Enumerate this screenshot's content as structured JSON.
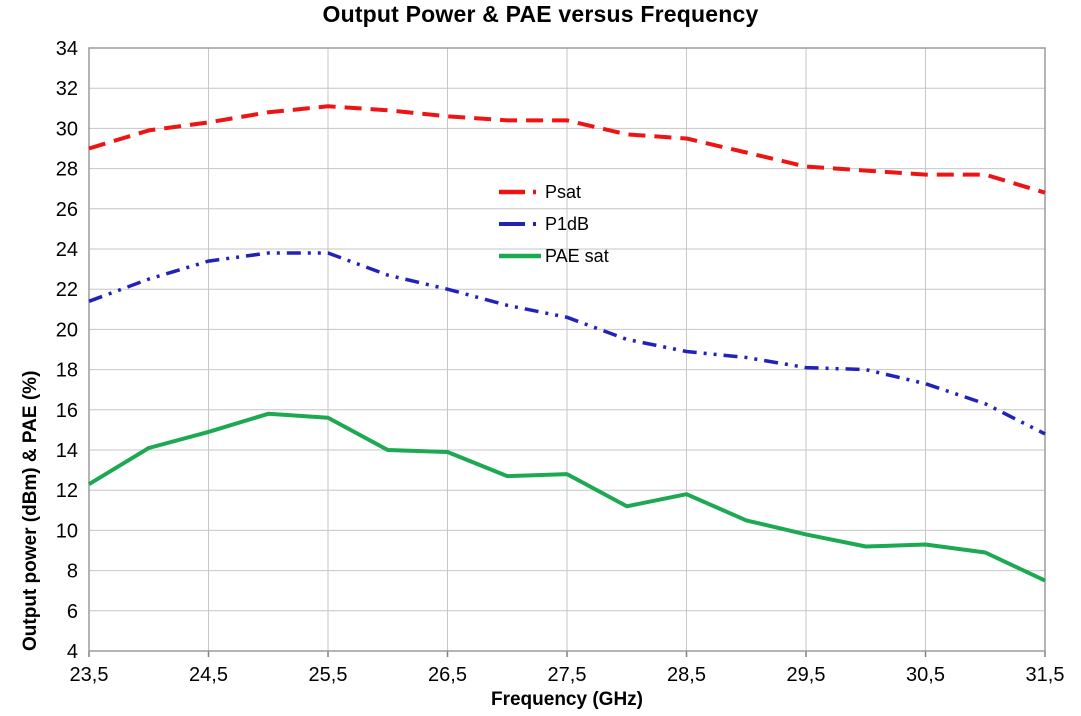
{
  "chart_data": {
    "type": "line",
    "title": "Output Power & PAE versus Frequency",
    "xlabel": "Frequency (GHz)",
    "ylabel": "Output power (dBm) & PAE (%)",
    "xlim": [
      23.5,
      31.5
    ],
    "ylim": [
      4,
      34
    ],
    "grid": true,
    "legend_position": "inside-center",
    "decimal_separator": ",",
    "x": [
      23.5,
      24.0,
      24.5,
      25.0,
      25.5,
      26.0,
      26.5,
      27.0,
      27.5,
      28.0,
      28.5,
      29.0,
      29.5,
      30.0,
      30.5,
      31.0,
      31.5
    ],
    "x_tick_values": [
      23.5,
      24.5,
      25.5,
      26.5,
      27.5,
      28.5,
      29.5,
      30.5,
      31.5
    ],
    "x_tick_labels": [
      "23,5",
      "24,5",
      "25,5",
      "26,5",
      "27,5",
      "28,5",
      "29,5",
      "30,5",
      "31,5"
    ],
    "y_tick_values": [
      4,
      6,
      8,
      10,
      12,
      14,
      16,
      18,
      20,
      22,
      24,
      26,
      28,
      30,
      32,
      34
    ],
    "y_tick_labels": [
      "4",
      "6",
      "8",
      "10",
      "12",
      "14",
      "16",
      "18",
      "20",
      "22",
      "24",
      "26",
      "28",
      "30",
      "32",
      "34"
    ],
    "series": [
      {
        "name": "Psat",
        "color": "#EE1414",
        "style": "dashed",
        "width": 4,
        "values": [
          29.0,
          29.9,
          30.3,
          30.8,
          31.1,
          30.9,
          30.6,
          30.4,
          30.4,
          29.7,
          29.5,
          28.8,
          28.1,
          27.9,
          27.7,
          27.7,
          26.8
        ]
      },
      {
        "name": "P1dB",
        "color": "#2121BC",
        "style": "dash-dot-dot",
        "width": 3.5,
        "values": [
          21.4,
          22.5,
          23.4,
          23.8,
          23.8,
          22.7,
          22.0,
          21.2,
          20.6,
          19.5,
          18.9,
          18.6,
          18.1,
          18.0,
          17.3,
          16.3,
          14.8
        ]
      },
      {
        "name": "PAE sat",
        "color": "#1CA951",
        "style": "solid",
        "width": 4,
        "values": [
          12.3,
          14.1,
          14.9,
          15.8,
          15.6,
          14.0,
          13.9,
          12.7,
          12.8,
          11.2,
          11.8,
          10.5,
          9.8,
          9.2,
          9.3,
          8.9,
          7.5
        ]
      }
    ],
    "colors": {
      "grid": "#C6C6C6",
      "border": "#9B9B9B",
      "tick": "#808080",
      "text": "#000000",
      "background": "#FFFFFF"
    }
  }
}
